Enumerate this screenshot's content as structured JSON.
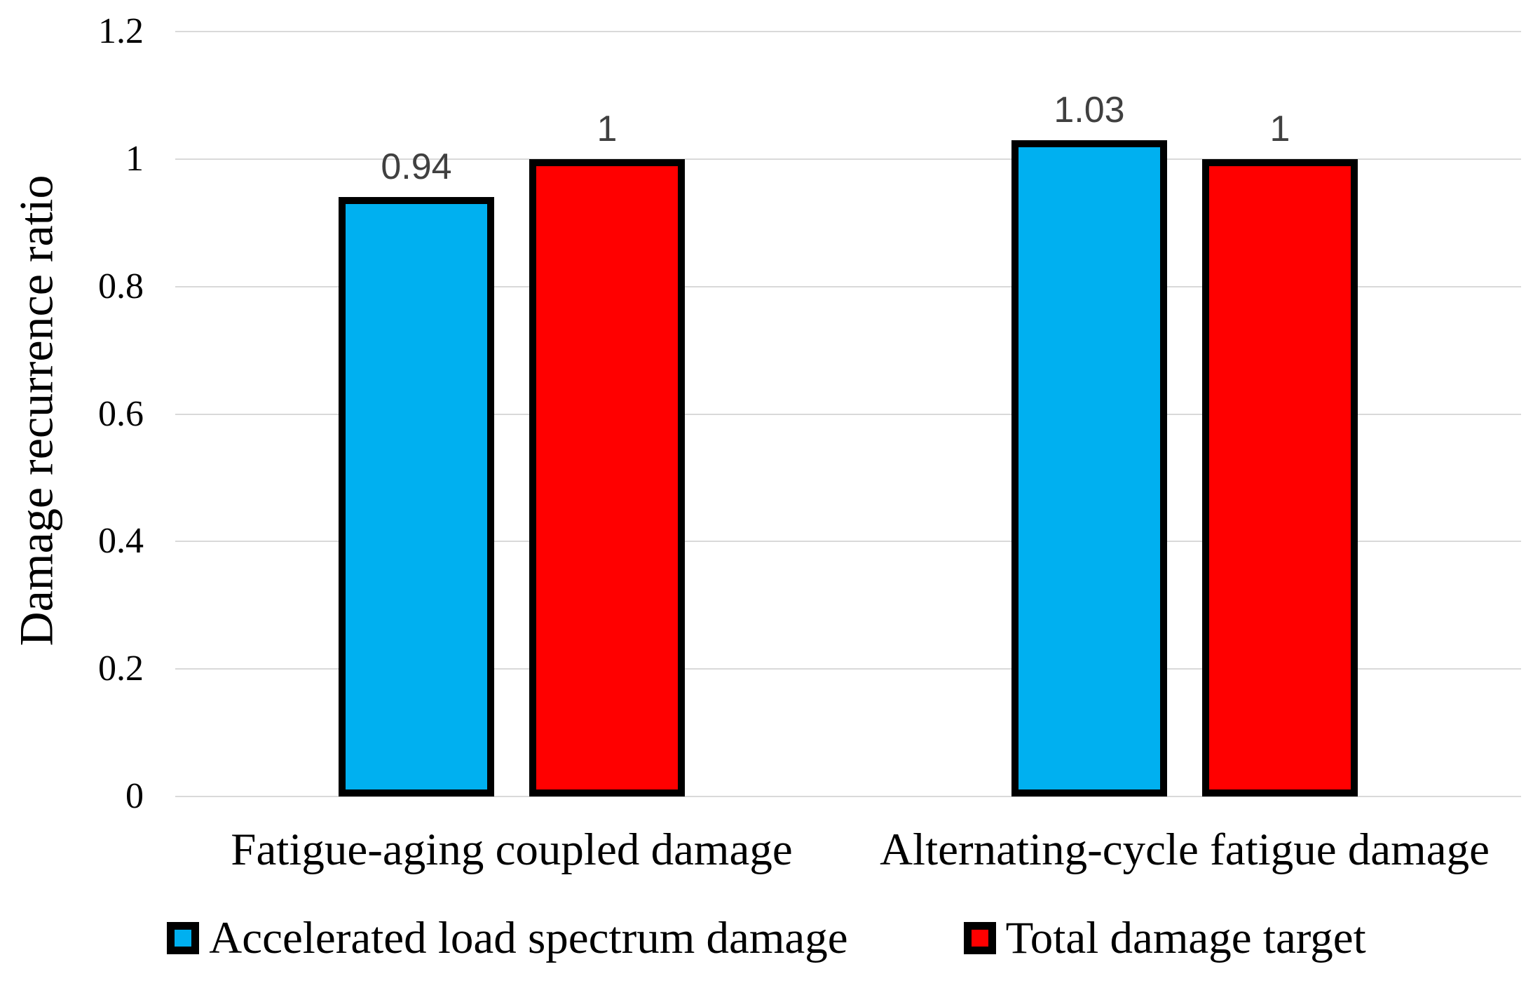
{
  "chart_data": {
    "type": "bar",
    "title": "",
    "ylabel": "Damage recurrence ratio",
    "xlabel": "",
    "categories": [
      "Fatigue-aging coupled damage",
      "Alternating-cycle fatigue damage"
    ],
    "series": [
      {
        "name": "Accelerated load spectrum damage",
        "color": "#00B0F0",
        "values": [
          0.94,
          1.03
        ],
        "data_labels": [
          "0.94",
          "1.03"
        ]
      },
      {
        "name": "Total damage target",
        "color": "#FF0000",
        "values": [
          1,
          1
        ],
        "data_labels": [
          "1",
          "1"
        ]
      }
    ],
    "ylim": [
      0,
      1.2
    ],
    "yticks": [
      "0",
      "0.2",
      "0.4",
      "0.6",
      "0.8",
      "1",
      "1.2"
    ],
    "ytick_values": [
      0,
      0.2,
      0.4,
      0.6,
      0.8,
      1.0,
      1.2
    ],
    "grid": true,
    "gridline_color": "#D9D9D9",
    "bar_border_color": "#000000",
    "legend_position": "bottom"
  }
}
